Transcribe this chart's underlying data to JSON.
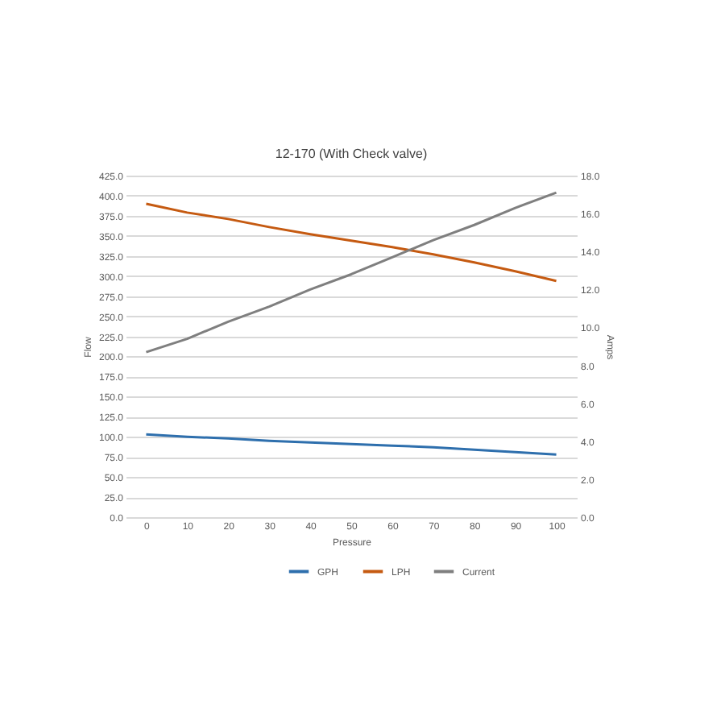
{
  "chart_data": {
    "type": "line",
    "title": "12-170 (With Check valve)",
    "xlabel": "Pressure",
    "ylabel": "Flow",
    "y2label": "Amps",
    "categories": [
      "0",
      "10",
      "20",
      "30",
      "40",
      "50",
      "60",
      "70",
      "80",
      "90",
      "100"
    ],
    "series": [
      {
        "name": "GPH",
        "color": "#2e6fad",
        "values": [
          103,
          100,
          98,
          95,
          93,
          91,
          89,
          87,
          84,
          81,
          78
        ]
      },
      {
        "name": "LPH",
        "color": "#c55a11",
        "values": [
          390,
          379,
          371,
          361,
          352,
          344,
          336,
          327,
          317,
          306,
          294
        ]
      },
      {
        "name": "Current",
        "color": "#7f7f7f",
        "axis": "y2",
        "values": [
          8.7,
          9.4,
          10.3,
          11.1,
          12.0,
          12.8,
          13.7,
          14.6,
          15.4,
          16.3,
          17.1
        ]
      }
    ],
    "ylim": [
      0,
      425
    ],
    "yticks": [
      {
        "value": 0,
        "label": "0.0"
      },
      {
        "value": 25,
        "label": "25.0"
      },
      {
        "value": 50,
        "label": "50.0"
      },
      {
        "value": 75,
        "label": "75.0"
      },
      {
        "value": 100,
        "label": "100.0"
      },
      {
        "value": 125,
        "label": "125.0"
      },
      {
        "value": 150,
        "label": "150.0"
      },
      {
        "value": 175,
        "label": "175.0"
      },
      {
        "value": 200,
        "label": "200.0"
      },
      {
        "value": 225,
        "label": "225.0"
      },
      {
        "value": 250,
        "label": "250.0"
      },
      {
        "value": 275,
        "label": "275.0"
      },
      {
        "value": 300,
        "label": "300.0"
      },
      {
        "value": 325,
        "label": "325.0"
      },
      {
        "value": 350,
        "label": "350.0"
      },
      {
        "value": 375,
        "label": "375.0"
      },
      {
        "value": 400,
        "label": "400.0"
      },
      {
        "value": 425,
        "label": "425.0"
      }
    ],
    "y2lim": [
      0,
      18
    ],
    "y2ticks": [
      {
        "value": 0,
        "label": "0.0"
      },
      {
        "value": 2,
        "label": "2.0"
      },
      {
        "value": 4,
        "label": "4.0"
      },
      {
        "value": 6,
        "label": "6.0"
      },
      {
        "value": 8,
        "label": "8.0"
      },
      {
        "value": 10,
        "label": "10.0"
      },
      {
        "value": 12,
        "label": "12.0"
      },
      {
        "value": 14,
        "label": "14.0"
      },
      {
        "value": 16,
        "label": "16.0"
      },
      {
        "value": 18,
        "label": "18.0"
      }
    ],
    "grid": "y",
    "legend": "bottom"
  }
}
